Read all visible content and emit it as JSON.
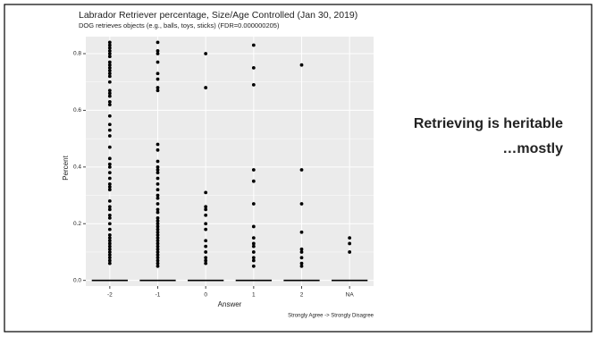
{
  "chart_data": {
    "type": "box",
    "title": "Labrador Retriever percentage, Size/Age Controlled (Jan 30, 2019)",
    "subtitle": "DOG retrieves objects (e.g., balls, toys, sticks) (FDR=0.000000205)",
    "x_label": "Answer",
    "y_label": "Percent",
    "caption": "Strongly Agree -> Strongly Disagree",
    "annotation": [
      "Retrieving is heritable",
      "…mostly"
    ],
    "categories": [
      "-2",
      "-1",
      "0",
      "1",
      "2",
      "NA"
    ],
    "median": [
      0,
      0,
      0,
      0,
      0,
      0
    ],
    "outliers": [
      [
        0.84,
        0.83,
        0.82,
        0.81,
        0.8,
        0.79,
        0.77,
        0.76,
        0.75,
        0.74,
        0.73,
        0.72,
        0.7,
        0.67,
        0.66,
        0.65,
        0.63,
        0.62,
        0.58,
        0.55,
        0.53,
        0.51,
        0.47,
        0.43,
        0.41,
        0.4,
        0.38,
        0.36,
        0.34,
        0.33,
        0.32,
        0.28,
        0.26,
        0.25,
        0.23,
        0.22,
        0.2,
        0.18,
        0.16,
        0.15,
        0.14,
        0.13,
        0.12,
        0.11,
        0.1,
        0.09,
        0.08,
        0.07,
        0.06
      ],
      [
        0.84,
        0.81,
        0.8,
        0.77,
        0.73,
        0.71,
        0.68,
        0.67,
        0.48,
        0.46,
        0.42,
        0.4,
        0.39,
        0.38,
        0.36,
        0.34,
        0.32,
        0.3,
        0.29,
        0.27,
        0.25,
        0.24,
        0.22,
        0.21,
        0.2,
        0.19,
        0.18,
        0.17,
        0.16,
        0.15,
        0.14,
        0.13,
        0.12,
        0.11,
        0.1,
        0.09,
        0.08,
        0.07,
        0.06,
        0.05
      ],
      [
        0.8,
        0.68,
        0.31,
        0.26,
        0.25,
        0.23,
        0.2,
        0.18,
        0.14,
        0.12,
        0.1,
        0.08,
        0.07,
        0.06
      ],
      [
        0.83,
        0.75,
        0.69,
        0.39,
        0.35,
        0.27,
        0.19,
        0.15,
        0.13,
        0.12,
        0.1,
        0.08,
        0.07,
        0.05
      ],
      [
        0.76,
        0.39,
        0.27,
        0.17,
        0.11,
        0.1,
        0.08,
        0.06,
        0.05
      ],
      [
        0.15,
        0.13,
        0.1
      ]
    ],
    "color": "#000000",
    "panel_color": "#ebebeb",
    "ylim": [
      -0.02,
      0.86
    ],
    "yticks": [
      {
        "value": 0,
        "label": "0.0"
      },
      0.2,
      0.4,
      0.6,
      0.8
    ],
    "grid": true
  }
}
